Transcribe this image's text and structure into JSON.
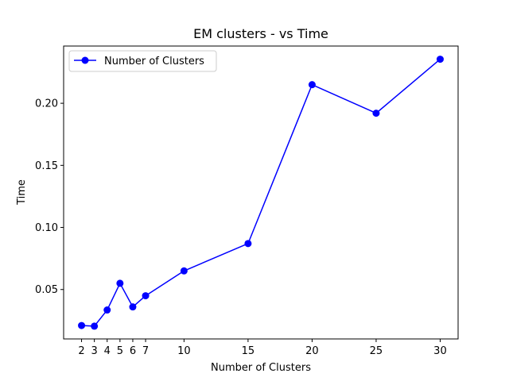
{
  "chart_data": {
    "type": "line",
    "title": "EM clusters - vs Time",
    "xlabel": "Number of Clusters",
    "ylabel": "Time",
    "xticks": [
      2,
      3,
      4,
      5,
      6,
      7,
      10,
      15,
      20,
      25,
      30
    ],
    "yticks": [
      0.05,
      0.1,
      0.15,
      0.2
    ],
    "ytick_labels": [
      "0.05",
      "0.10",
      "0.15",
      "0.20"
    ],
    "xlim": [
      0.6,
      31.4
    ],
    "ylim": [
      0.0102,
      0.2461
    ],
    "grid": false,
    "legend_position": "top-left",
    "series": [
      {
        "name": "Number of Clusters",
        "color": "#0000ff",
        "marker": "circle",
        "x": [
          2,
          3,
          4,
          5,
          6,
          7,
          10,
          15,
          20,
          25,
          30
        ],
        "y": [
          0.021,
          0.0205,
          0.0335,
          0.055,
          0.036,
          0.045,
          0.065,
          0.087,
          0.215,
          0.192,
          0.2355
        ]
      }
    ]
  }
}
